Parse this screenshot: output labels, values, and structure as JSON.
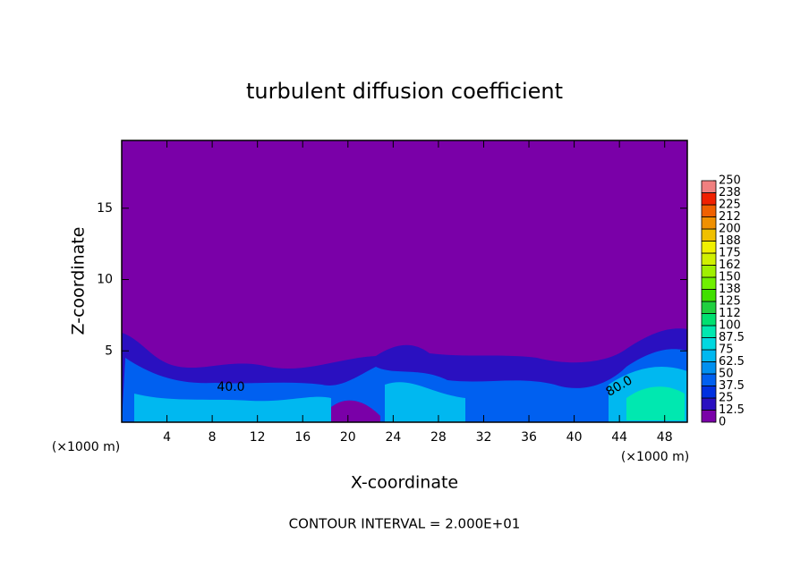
{
  "chart_data": {
    "type": "heatmap",
    "title": "turbulent diffusion coefficient",
    "x_label": "X-coordinate",
    "y_label": "Z-coordinate",
    "x_unit": "(×1000 m)",
    "y_unit": "(×1000 m)",
    "footer": "CONTOUR INTERVAL = 2.000E+01",
    "annotations": [
      "40.0",
      "80.0"
    ],
    "xlim": [
      0,
      50
    ],
    "xticks": [
      4,
      8,
      12,
      16,
      20,
      24,
      28,
      32,
      36,
      40,
      44,
      48
    ],
    "ylim": [
      0,
      19.75
    ],
    "yticks": [
      5,
      10,
      15
    ],
    "colorbar": {
      "ticks": [
        0,
        12.5,
        25,
        37.5,
        50,
        62.5,
        75,
        87.5,
        100,
        112,
        125,
        138,
        150,
        162,
        175,
        188,
        200,
        212,
        225,
        238,
        250
      ],
      "colors": [
        "#7a00a8",
        "#2a10c0",
        "#0030e0",
        "#0060f0",
        "#0090f0",
        "#00b8f0",
        "#00d8e0",
        "#00e8b0",
        "#00e070",
        "#20d040",
        "#40e000",
        "#70f000",
        "#a0f000",
        "#d0f000",
        "#f0f000",
        "#f0c000",
        "#f09000",
        "#f06000",
        "#f02000",
        "#f08080"
      ]
    }
  }
}
